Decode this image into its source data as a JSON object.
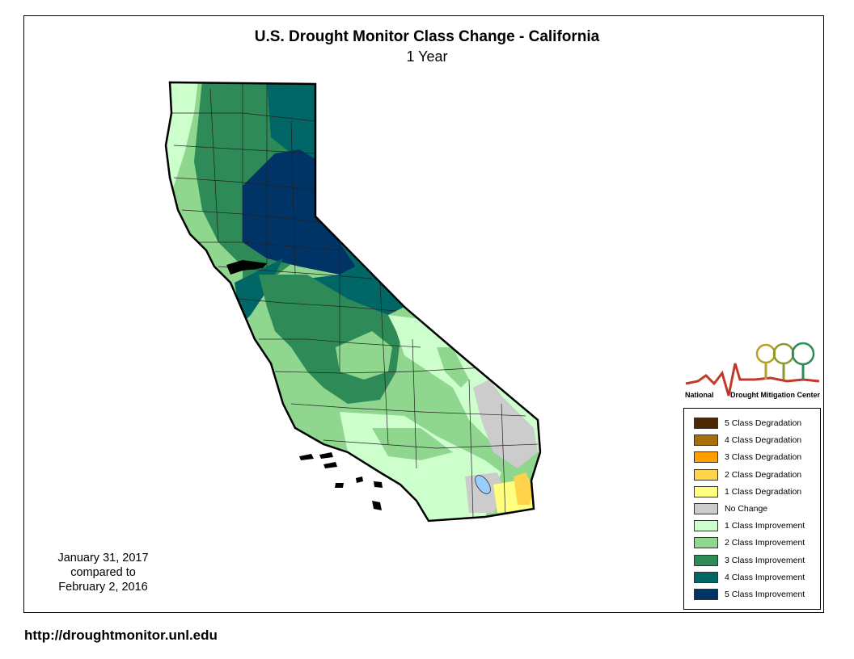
{
  "title": "U.S. Drought Monitor Class Change - California",
  "subtitle": "1 Year",
  "date_lines": [
    "January 31, 2017",
    "compared to",
    "February 2, 2016"
  ],
  "url": "http://droughtmonitor.unl.edu",
  "logo": {
    "left_text": "National",
    "right_text": "Drought Mitigation Center"
  },
  "legend": [
    {
      "label": "5 Class Degradation",
      "color": "#4d2800"
    },
    {
      "label": "4 Class Degradation",
      "color": "#a8700a"
    },
    {
      "label": "3 Class Degradation",
      "color": "#ff9f00"
    },
    {
      "label": "2 Class Degradation",
      "color": "#ffd34a"
    },
    {
      "label": "1 Class Degradation",
      "color": "#ffff80"
    },
    {
      "label": "No Change",
      "color": "#cccccc"
    },
    {
      "label": "1 Class Improvement",
      "color": "#ccffcc"
    },
    {
      "label": "2 Class Improvement",
      "color": "#8fd68f"
    },
    {
      "label": "3 Class Improvement",
      "color": "#2e8b57"
    },
    {
      "label": "4 Class Improvement",
      "color": "#006666"
    },
    {
      "label": "5 Class Improvement",
      "color": "#003366"
    }
  ]
}
